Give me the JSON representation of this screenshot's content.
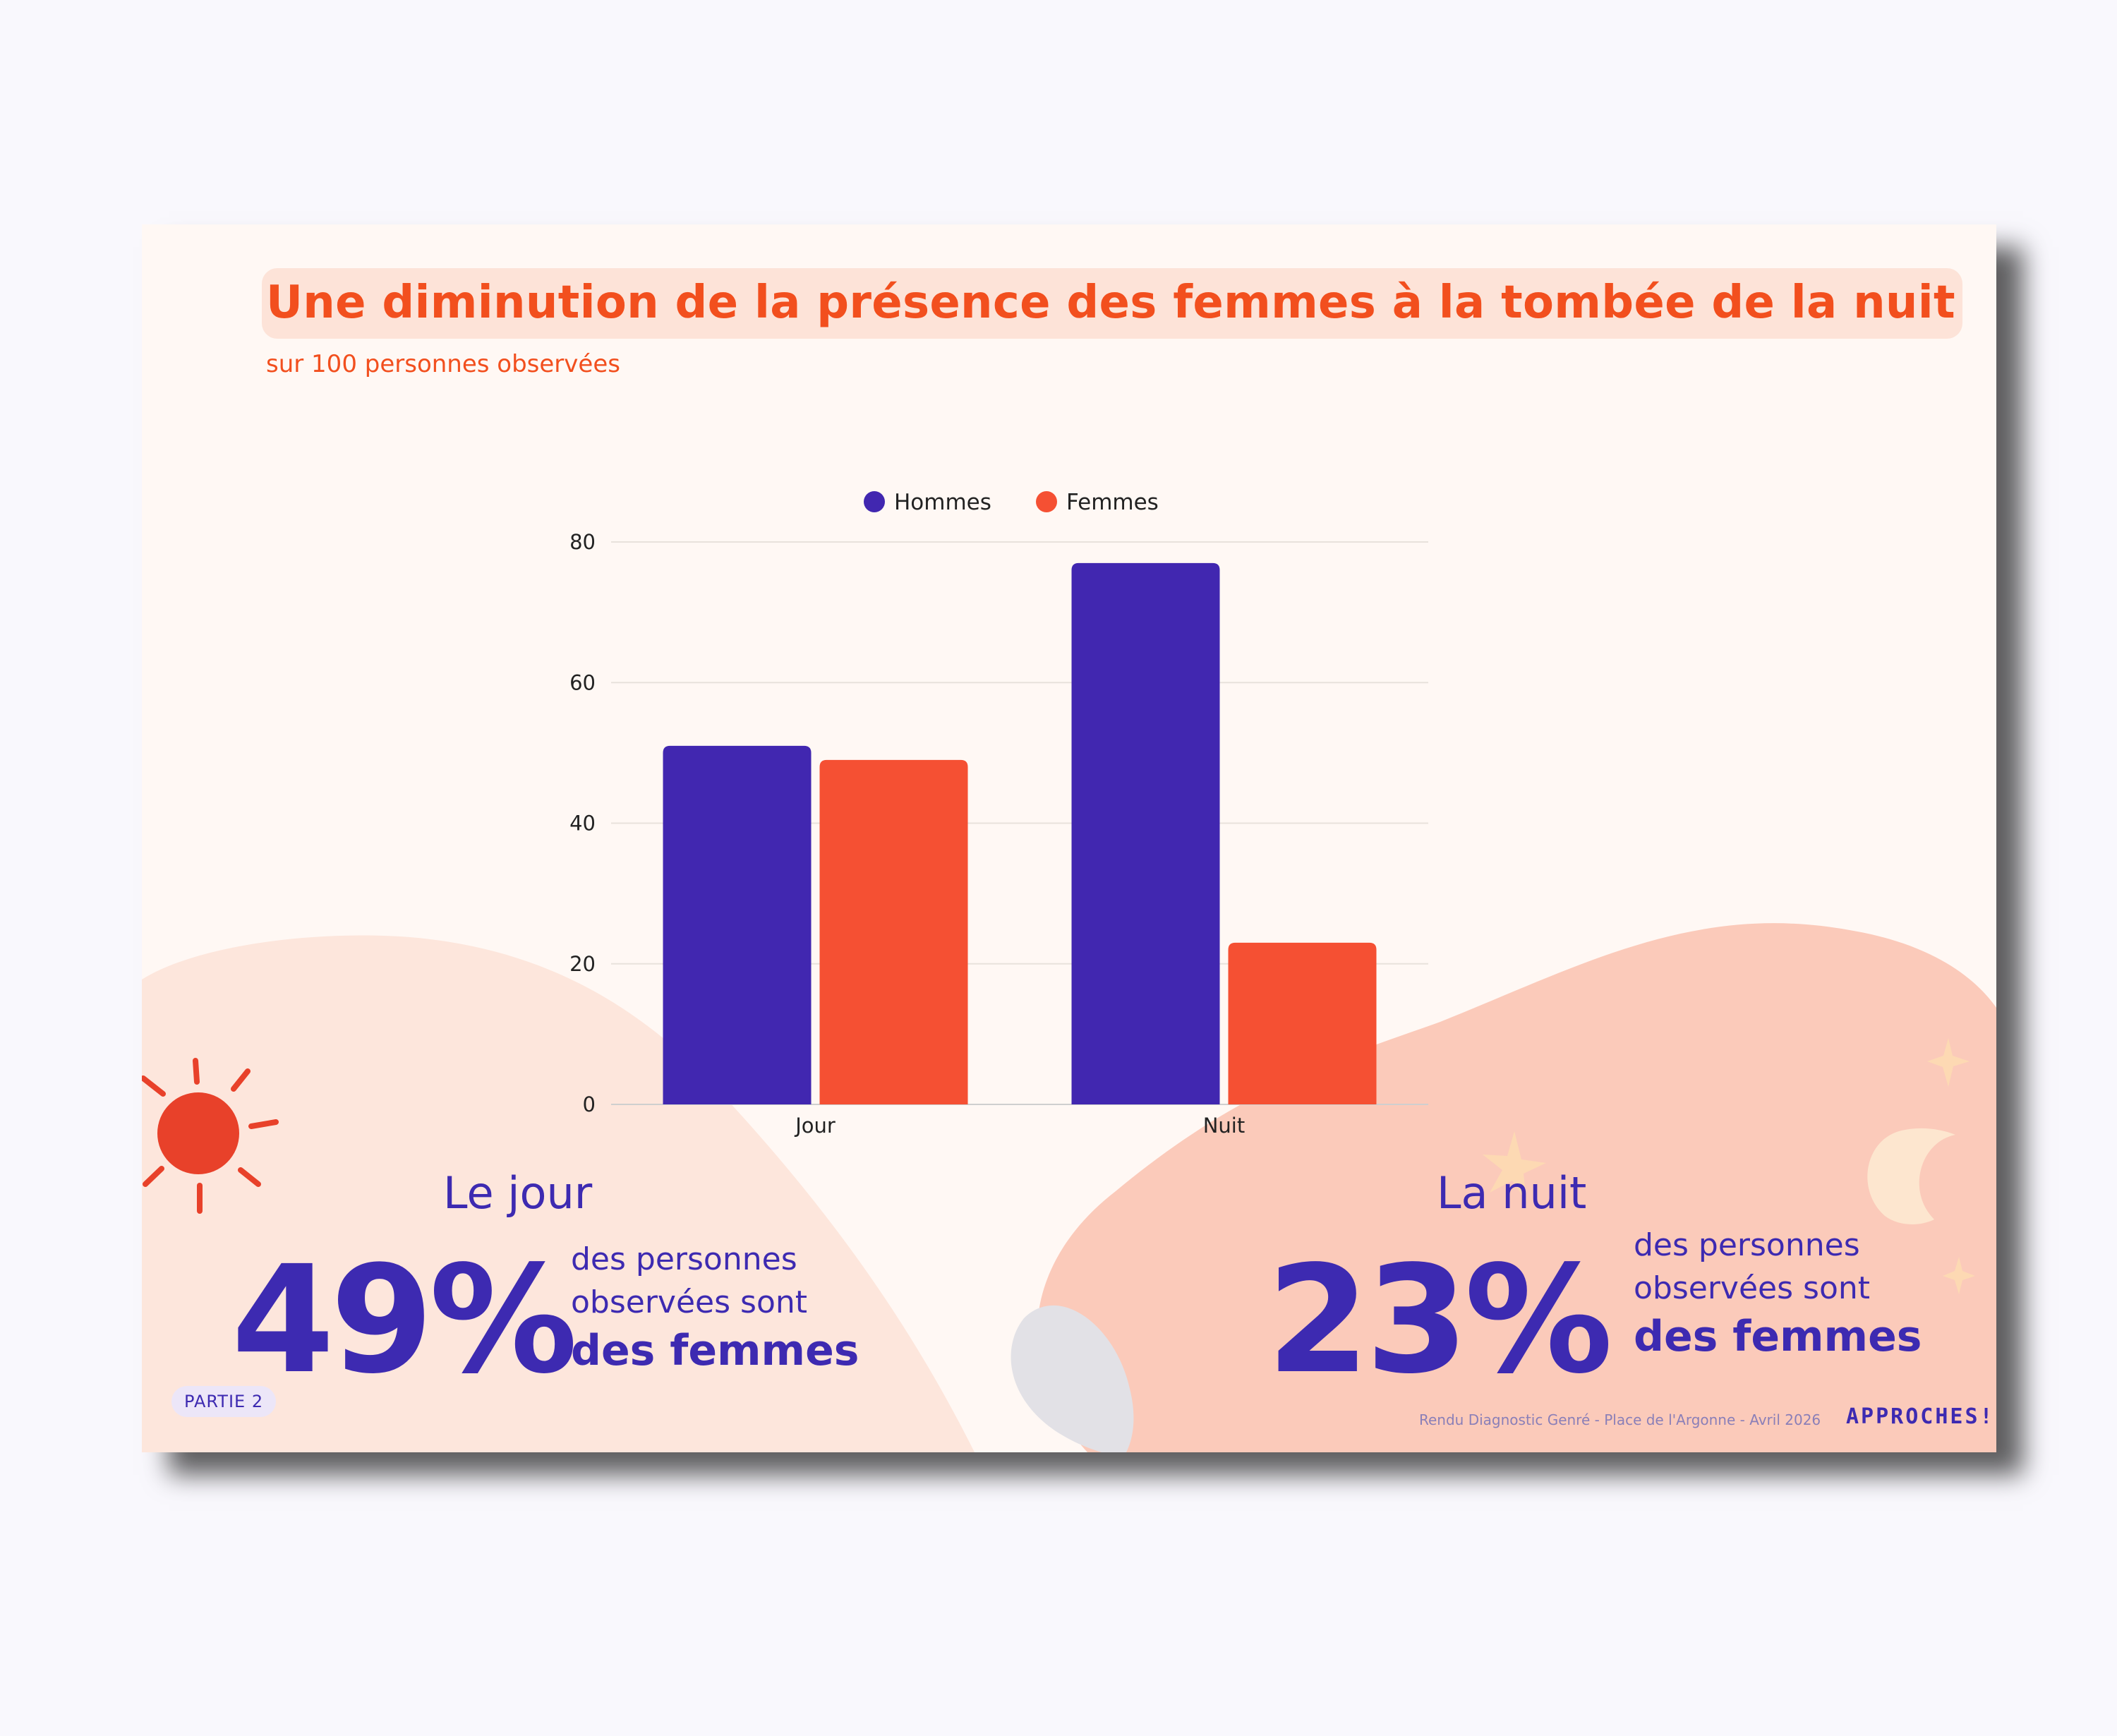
{
  "title": "Une diminution de la présence des femmes à la tombée de la nuit",
  "subtitle": "sur 100 personnes observées",
  "chart_data": {
    "type": "bar",
    "categories": [
      "Jour",
      "Nuit"
    ],
    "series": [
      {
        "name": "Hommes",
        "values": [
          51,
          77
        ],
        "color": "#4127b0"
      },
      {
        "name": "Femmes",
        "values": [
          49,
          23
        ],
        "color": "#f55033"
      }
    ],
    "ylim": [
      0,
      80
    ],
    "yticks": [
      0,
      20,
      40,
      60,
      80
    ],
    "grid": true,
    "legend_position": "top-center"
  },
  "stats": {
    "day": {
      "title": "Le jour",
      "value": "49%",
      "line1": "des personnes",
      "line2": "observées sont",
      "emphasis": "des femmes"
    },
    "night": {
      "title": "La nuit",
      "value": "23%",
      "line1": "des personnes",
      "line2": "observées sont",
      "emphasis": "des femmes"
    }
  },
  "badge": "PARTIE 2",
  "footer": "Rendu Diagnostic Genré - Place de l'Argonne - Avril 2026",
  "brand": "APPROCHES!",
  "colors": {
    "accent": "#f24f1e",
    "primary": "#3d2ab1",
    "hommes": "#4127b0",
    "femmes": "#f55033"
  }
}
